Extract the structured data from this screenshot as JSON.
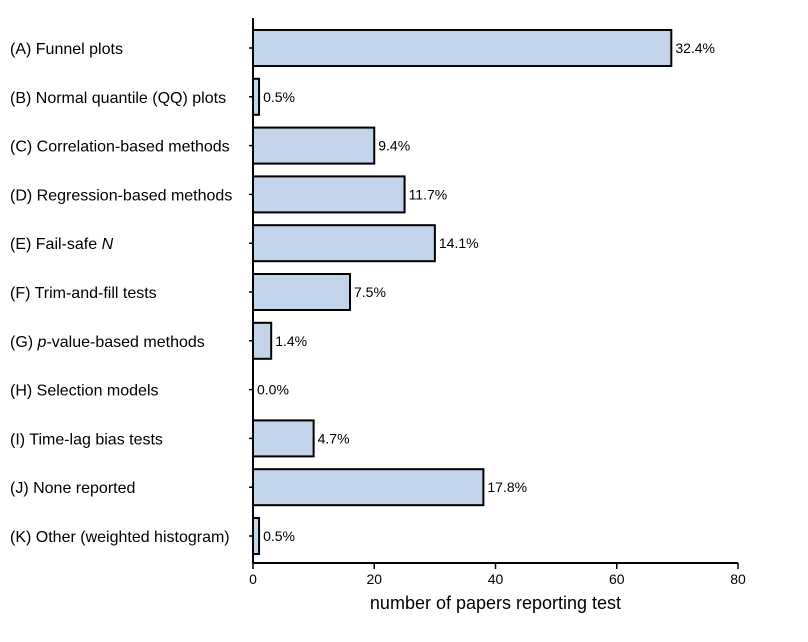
{
  "chart_data": {
    "type": "bar",
    "orientation": "horizontal",
    "categories": [
      "(A) Funnel plots",
      "(B) Normal quantile (QQ) plots",
      "(C) Correlation-based methods",
      "(D) Regression-based methods",
      "(E) Fail-safe N",
      "(F) Trim-and-fill tests",
      "(G) p-value-based methods",
      "(H) Selection models",
      "(I) Time-lag bias tests",
      "(J) None reported",
      "(K) Other (weighted histogram)"
    ],
    "values": [
      69,
      1,
      20,
      25,
      30,
      16,
      3,
      0,
      10,
      38,
      1
    ],
    "data_labels": [
      "32.4%",
      "0.5%",
      "9.4%",
      "11.7%",
      "14.1%",
      "7.5%",
      "1.4%",
      "0.0%",
      "4.7%",
      "17.8%",
      "0.5%"
    ],
    "title": "",
    "xlabel": "number of papers reporting test",
    "ylabel": "",
    "xlim": [
      0,
      80
    ],
    "xticks": [
      0,
      20,
      40,
      60,
      80
    ],
    "grid": false,
    "legend": "none",
    "bar_color": "#c3d3e9",
    "bar_edge_color": "#000000"
  }
}
